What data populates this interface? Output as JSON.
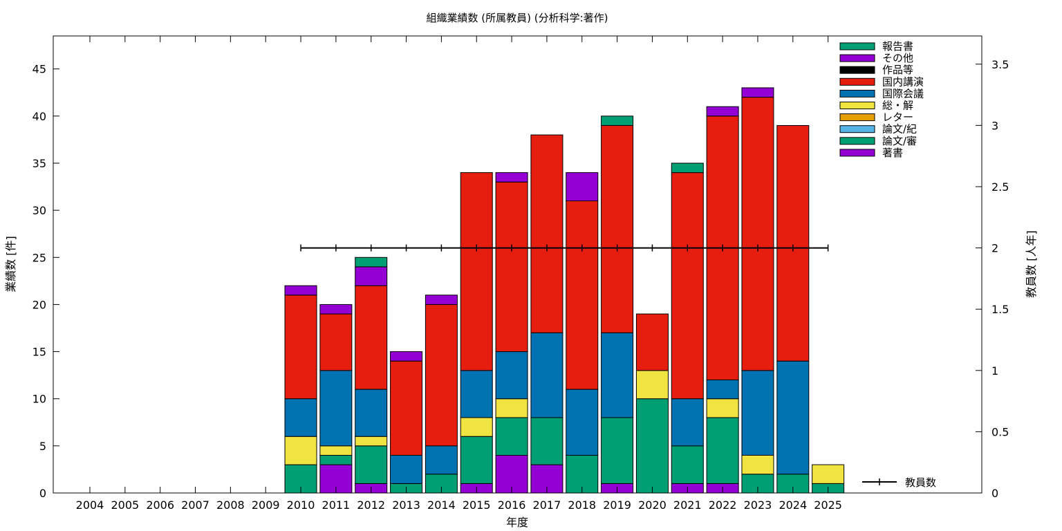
{
  "chart_data": {
    "type": "bar",
    "stacked": true,
    "title": "組織業績数 (所属教員) (分析科学:著作)",
    "xlabel": "年度",
    "ylabel": "業績数 [件]",
    "y2label": "教員数 [人年]",
    "ylim": [
      0,
      48.5
    ],
    "y2lim": [
      0,
      3.73
    ],
    "yticks": [
      0,
      5,
      10,
      15,
      20,
      25,
      30,
      35,
      40,
      45
    ],
    "y2ticks": [
      "0",
      "0.5",
      "1",
      "1.5",
      "2",
      "2.5",
      "3",
      "3.5"
    ],
    "categories": [
      "2004",
      "2005",
      "2006",
      "2007",
      "2008",
      "2009",
      "2010",
      "2011",
      "2012",
      "2013",
      "2014",
      "2015",
      "2016",
      "2017",
      "2018",
      "2019",
      "2020",
      "2021",
      "2022",
      "2023",
      "2024",
      "2025"
    ],
    "series": [
      {
        "name": "著書",
        "color": "#9400d3",
        "values": [
          0,
          0,
          0,
          0,
          0,
          0,
          0,
          3,
          1,
          0,
          0,
          1,
          4,
          3,
          0,
          1,
          0,
          1,
          1,
          0,
          0,
          0
        ]
      },
      {
        "name": "論文/審",
        "color": "#009e73",
        "values": [
          0,
          0,
          0,
          0,
          0,
          0,
          3,
          1,
          4,
          1,
          2,
          5,
          4,
          5,
          4,
          7,
          10,
          4,
          7,
          2,
          2,
          1
        ]
      },
      {
        "name": "論文/紀",
        "color": "#56b4e9",
        "values": [
          0,
          0,
          0,
          0,
          0,
          0,
          0,
          0,
          0,
          0,
          0,
          0,
          0,
          0,
          0,
          0,
          0,
          0,
          0,
          0,
          0,
          0
        ]
      },
      {
        "name": "レター",
        "color": "#e69f00",
        "values": [
          0,
          0,
          0,
          0,
          0,
          0,
          0,
          0,
          0,
          0,
          0,
          0,
          0,
          0,
          0,
          0,
          0,
          0,
          0,
          0,
          0,
          0
        ]
      },
      {
        "name": "総・解",
        "color": "#f0e442",
        "values": [
          0,
          0,
          0,
          0,
          0,
          0,
          3,
          1,
          1,
          0,
          0,
          2,
          2,
          0,
          0,
          0,
          3,
          0,
          2,
          2,
          0,
          2
        ]
      },
      {
        "name": "国際会議",
        "color": "#0072b2",
        "values": [
          0,
          0,
          0,
          0,
          0,
          0,
          4,
          8,
          5,
          3,
          3,
          5,
          5,
          9,
          7,
          9,
          0,
          5,
          2,
          9,
          12,
          0
        ]
      },
      {
        "name": "国内講演",
        "color": "#e51e10",
        "values": [
          0,
          0,
          0,
          0,
          0,
          0,
          11,
          6,
          11,
          10,
          15,
          21,
          18,
          21,
          20,
          22,
          6,
          24,
          28,
          29,
          25,
          0
        ]
      },
      {
        "name": "作品等",
        "color": "#000000",
        "values": [
          0,
          0,
          0,
          0,
          0,
          0,
          0,
          0,
          0,
          0,
          0,
          0,
          0,
          0,
          0,
          0,
          0,
          0,
          0,
          0,
          0,
          0
        ]
      },
      {
        "name": "その他",
        "color": "#9400d3",
        "values": [
          0,
          0,
          0,
          0,
          0,
          0,
          1,
          1,
          2,
          1,
          1,
          0,
          1,
          0,
          3,
          0,
          0,
          0,
          1,
          1,
          0,
          0
        ]
      },
      {
        "name": "報告書",
        "color": "#009e73",
        "values": [
          0,
          0,
          0,
          0,
          0,
          0,
          0,
          0,
          1,
          0,
          0,
          0,
          0,
          0,
          0,
          1,
          0,
          1,
          0,
          0,
          0,
          0
        ]
      }
    ],
    "legend_order": [
      "報告書",
      "その他",
      "作品等",
      "国内講演",
      "国際会議",
      "総・解",
      "レター",
      "論文/紀",
      "論文/審",
      "著書"
    ],
    "line_series": {
      "name": "教員数",
      "axis": "y2",
      "color": "#000000",
      "x": [
        "2010",
        "2011",
        "2012",
        "2013",
        "2014",
        "2015",
        "2016",
        "2017",
        "2018",
        "2019",
        "2020",
        "2021",
        "2022",
        "2023",
        "2024",
        "2025"
      ],
      "values": [
        2,
        2,
        2,
        2,
        2,
        2,
        2,
        2,
        2,
        2,
        2,
        2,
        2,
        2,
        2,
        2
      ]
    },
    "legend_position": "top-right",
    "grid": false
  }
}
